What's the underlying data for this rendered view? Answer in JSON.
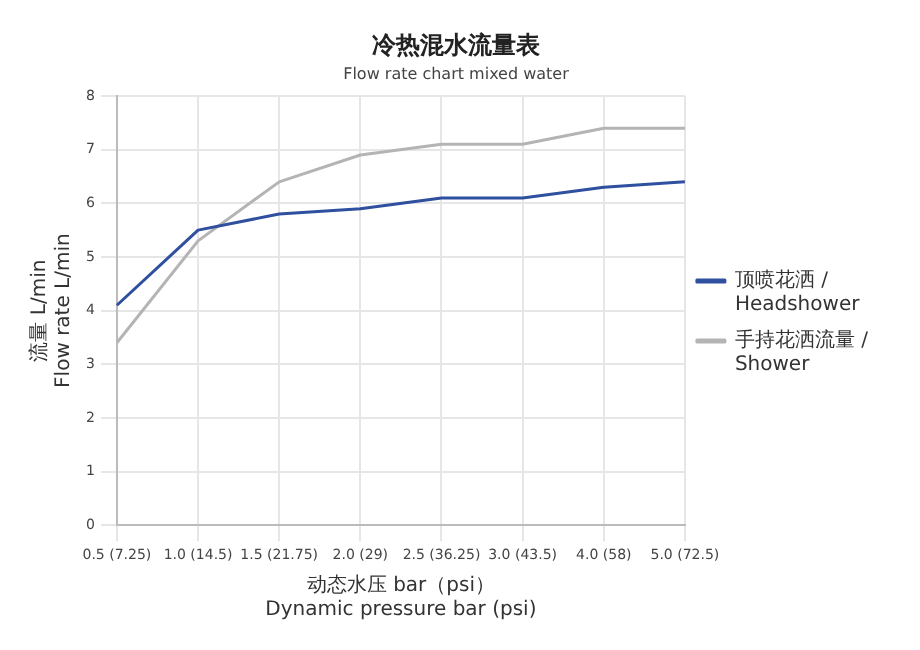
{
  "chart_data": {
    "type": "line",
    "title": "冷热混水流量表",
    "subtitle": "Flow rate chart mixed water",
    "xlabel": "动态水压 bar（psi）\nDynamic pressure bar (psi)",
    "ylabel": "流量 L/min\nFlow rate L/min",
    "categories": [
      "0.5 (7.25)",
      "1.0 (14.5)",
      "1.5 (21.75)",
      "2.0 (29)",
      "2.5 (36.25)",
      "3.0 (43.5)",
      "4.0 (58)",
      "5.0 (72.5)"
    ],
    "series": [
      {
        "name": "顶喷花洒 / Headshower",
        "color": "#2f4f9f",
        "values": [
          4.1,
          5.5,
          5.8,
          5.9,
          6.1,
          6.1,
          6.3,
          6.4
        ]
      },
      {
        "name": "手持花洒流量 / Shower",
        "color": "#b4b4b4",
        "values": [
          3.4,
          5.3,
          6.4,
          6.9,
          7.1,
          7.1,
          7.4,
          7.4
        ]
      }
    ],
    "ylim": [
      0,
      8
    ],
    "yticks": [
      0,
      1,
      2,
      3,
      4,
      5,
      6,
      7,
      8
    ],
    "grid": true,
    "legend": "right",
    "marker": "none",
    "line_style": "solid"
  }
}
